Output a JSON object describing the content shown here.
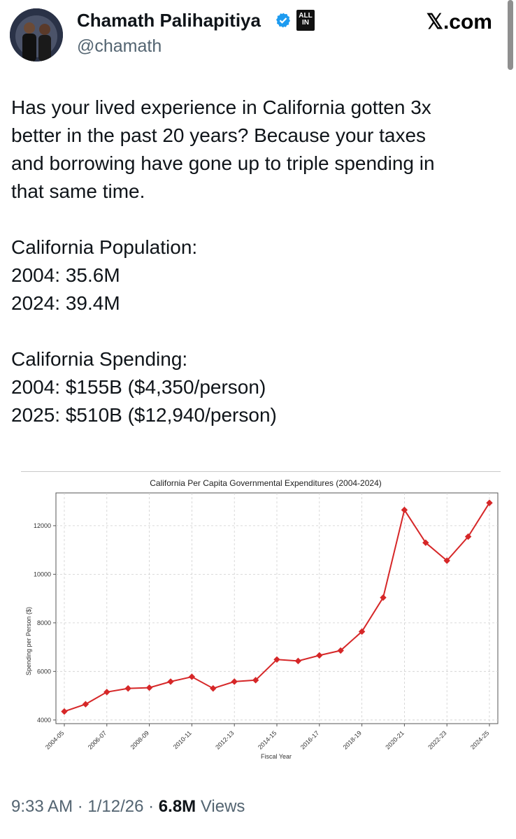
{
  "post": {
    "author_name": "Chamath Palihapitiya",
    "author_handle": "@chamath",
    "badge_text": "ALL IN",
    "site": "𝕏.com",
    "text_lines": [
      "Has your lived experience in California gotten 3x",
      "better in the past 20 years? Because your taxes",
      "and borrowing have gone up to triple spending in",
      "that same time."
    ],
    "population": {
      "heading": "California Population:",
      "line1": "2004: 35.6M",
      "line2": "2024: 39.4M"
    },
    "spending": {
      "heading": "California Spending:",
      "line1": "2004: $155B ($4,350/person)",
      "line2": "2025: $510B ($12,940/person)"
    },
    "footer": {
      "time": "9:33 AM",
      "date": "1/12/26",
      "views_count": "6.8M",
      "views_label": "Views"
    }
  },
  "colors": {
    "verified": "#1d9bf0",
    "line": "#d62728",
    "text": "#0f1419",
    "muted": "#536471"
  },
  "chart_data": {
    "type": "line",
    "title": "California Per Capita Governmental Expenditures (2004-2024)",
    "xlabel": "Fiscal Year",
    "ylabel": "Spending per Person ($)",
    "x_ticks": [
      "2004-05",
      "2006-07",
      "2008-09",
      "2010-11",
      "2012-13",
      "2014-15",
      "2016-17",
      "2018-19",
      "2020-21",
      "2022-23",
      "2024-25"
    ],
    "x": [
      "2004-05",
      "2005-06",
      "2006-07",
      "2007-08",
      "2008-09",
      "2009-10",
      "2010-11",
      "2011-12",
      "2012-13",
      "2013-14",
      "2014-15",
      "2015-16",
      "2016-17",
      "2017-18",
      "2018-19",
      "2019-20",
      "2020-21",
      "2021-22",
      "2022-23",
      "2023-24",
      "2024-25"
    ],
    "y": [
      4350,
      4650,
      5150,
      5300,
      5330,
      5580,
      5780,
      5300,
      5580,
      5640,
      6490,
      6430,
      6660,
      6860,
      7640,
      9040,
      12650,
      11300,
      10560,
      11550,
      12940
    ],
    "y_ticks": [
      4000,
      6000,
      8000,
      10000,
      12000
    ],
    "ylim": [
      3850,
      13350
    ],
    "grid": true,
    "marker": "diamond"
  }
}
